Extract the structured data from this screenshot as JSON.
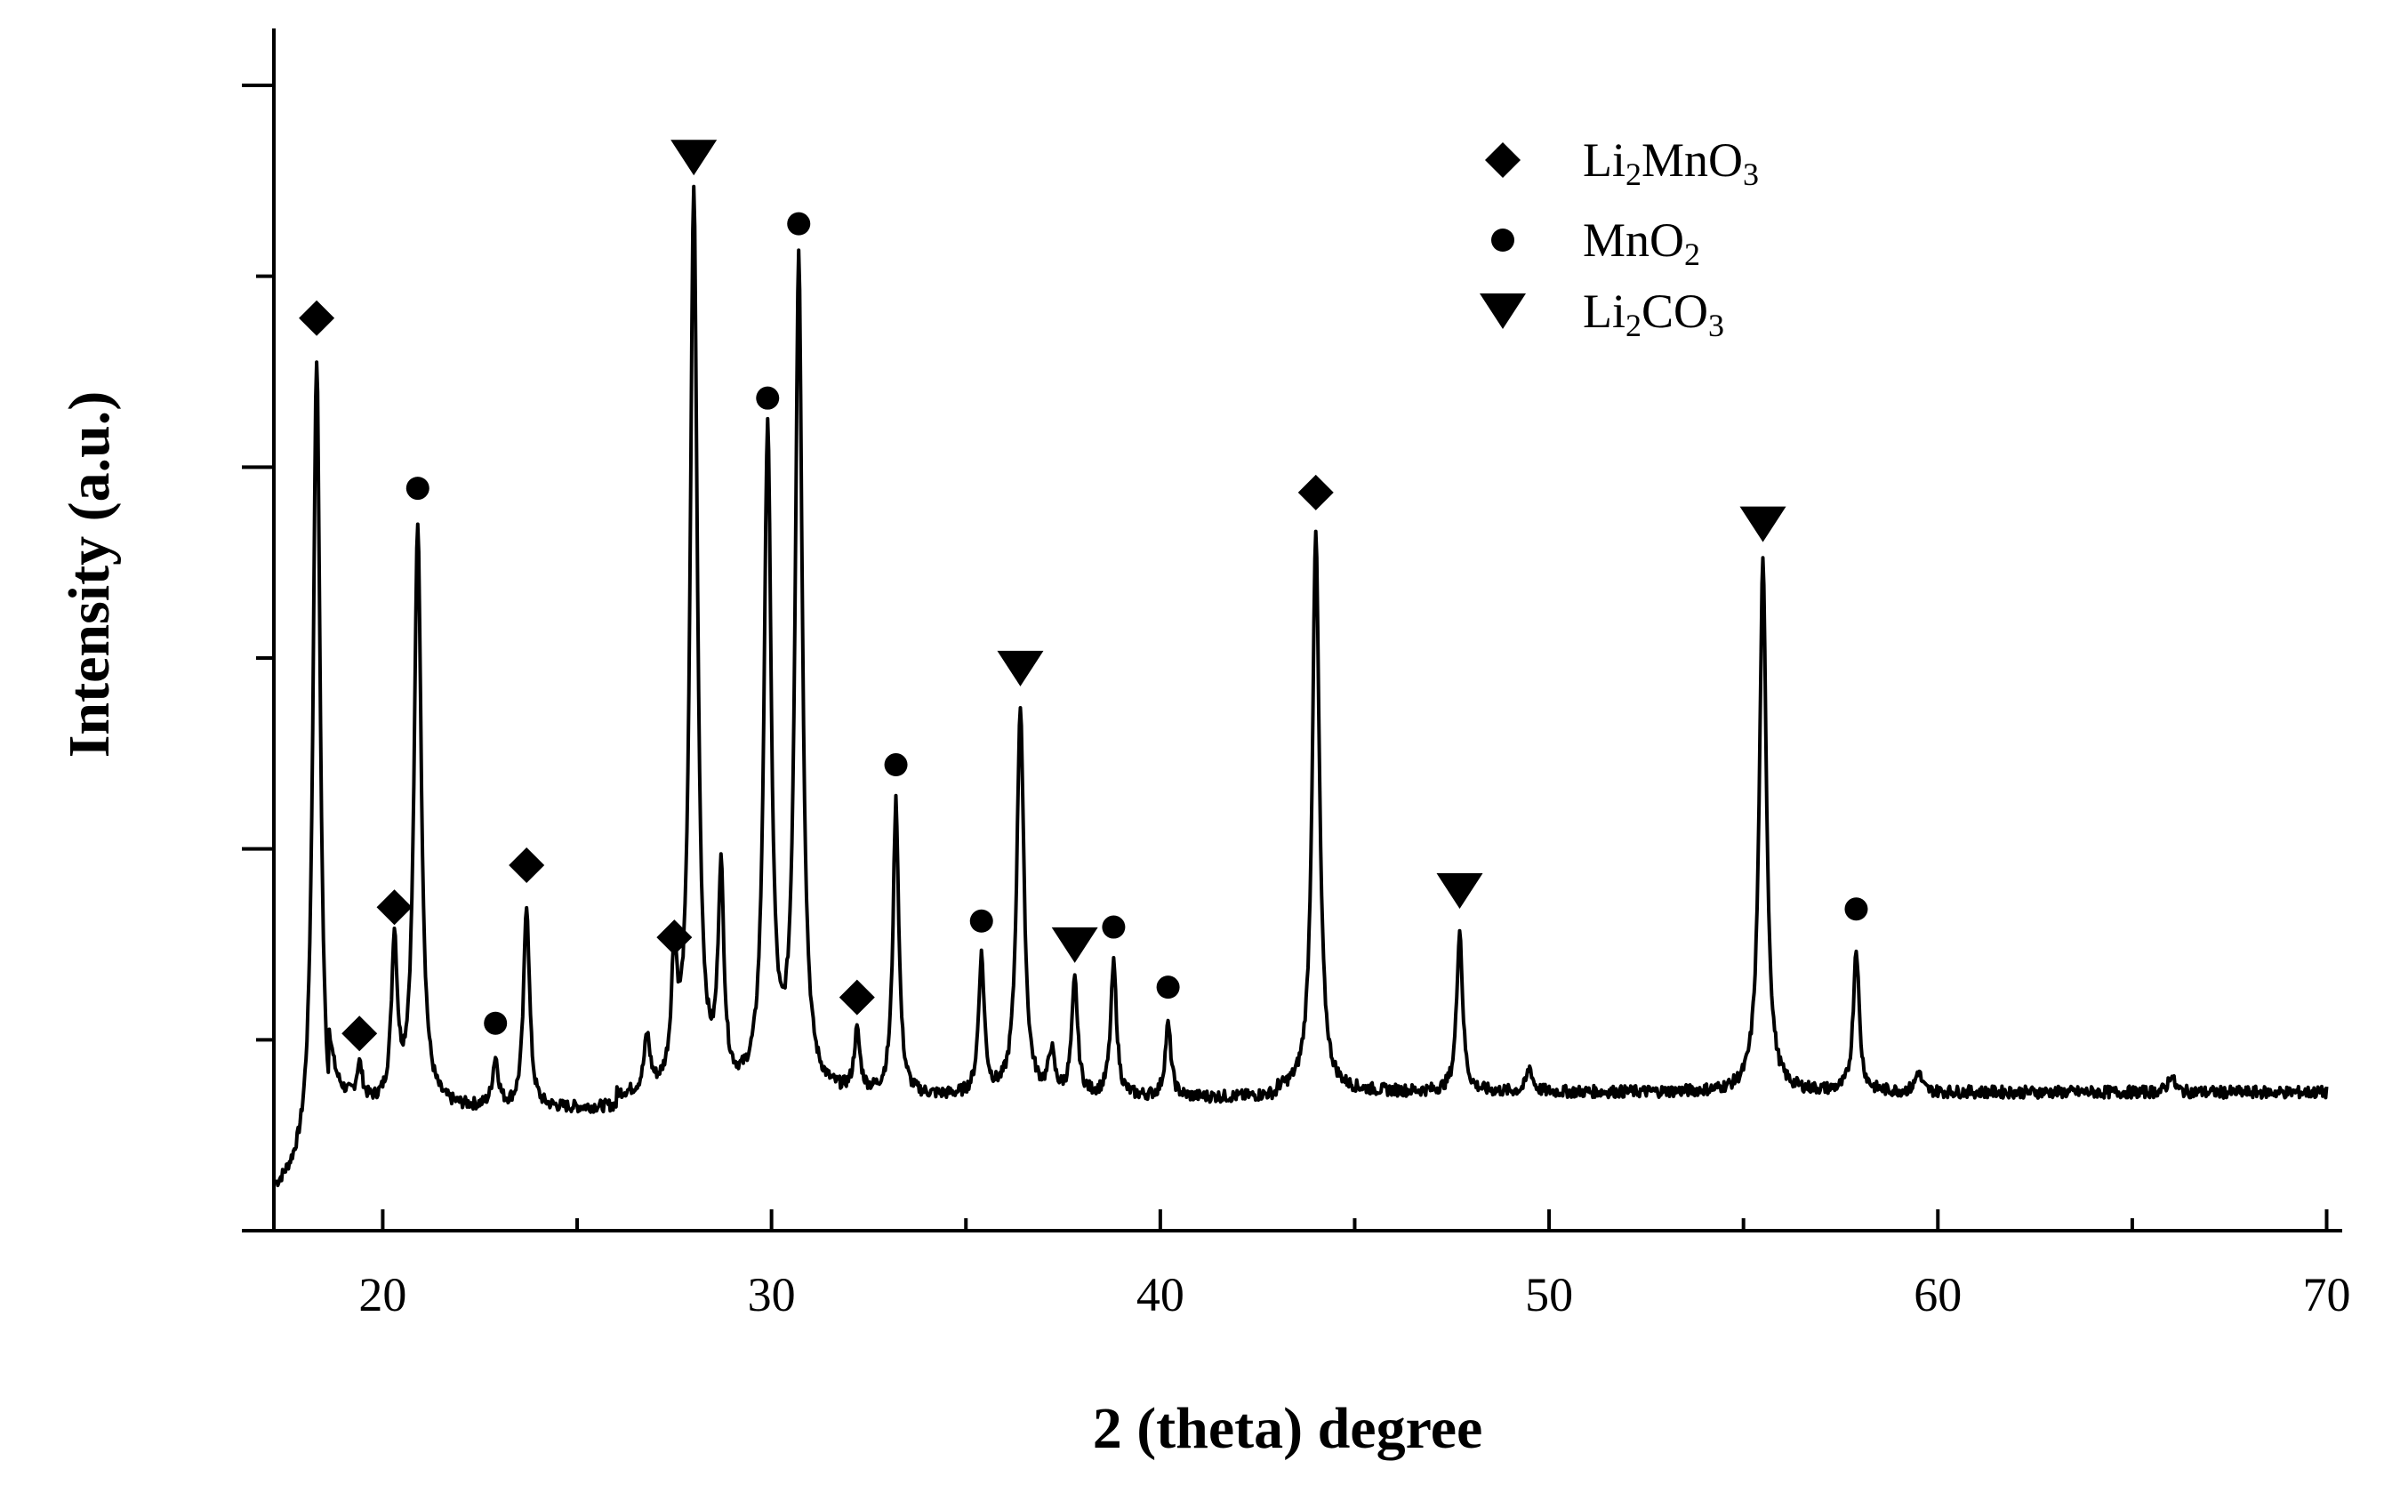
{
  "chart_data": {
    "type": "line",
    "title": "",
    "xlabel": "2 (theta) degree",
    "ylabel": "Intensity (a.u.)",
    "xlim": [
      17.2,
      70.4
    ],
    "ylim": [
      0,
      100
    ],
    "xticks": [
      20,
      30,
      40,
      50,
      60,
      70
    ],
    "x_tick_labels": [
      "20",
      "30",
      "40",
      "50",
      "60",
      "70"
    ],
    "y_tick_labels_shown": false,
    "grid": false,
    "legend_position": "top-right",
    "baseline": {
      "segments": [
        {
          "x_start": 17.2,
          "x_end": 18.0,
          "y": 3
        },
        {
          "x_start": 18.6,
          "x_end": 23.5,
          "y": 10
        },
        {
          "x_start": 24.0,
          "x_end": 26.0,
          "y": 10
        },
        {
          "x_start": 26.0,
          "x_end": 43.0,
          "y": 11
        },
        {
          "x_start": 45.0,
          "x_end": 70.0,
          "y": 11.5
        }
      ]
    },
    "series": [
      {
        "marker": "diamond",
        "legend": {
          "label": "Li",
          "sub1": "2",
          "mid": "MnO",
          "sub2": "3"
        },
        "peaks": [
          {
            "x": 18.3,
            "y": 72.5
          },
          {
            "x": 19.4,
            "y": 13.0
          },
          {
            "x": 20.3,
            "y": 23.5
          },
          {
            "x": 23.7,
            "y": 27.0
          },
          {
            "x": 27.5,
            "y": 21.0
          },
          {
            "x": 32.2,
            "y": 16.0
          },
          {
            "x": 44.0,
            "y": 58.0
          }
        ]
      },
      {
        "marker": "circle",
        "legend": {
          "label": "MnO",
          "sub1": "2",
          "mid": "",
          "sub2": ""
        },
        "peaks": [
          {
            "x": 20.9,
            "y": 58.5
          },
          {
            "x": 22.9,
            "y": 14.0
          },
          {
            "x": 29.9,
            "y": 66.0
          },
          {
            "x": 30.7,
            "y": 80.5
          },
          {
            "x": 33.2,
            "y": 35.5
          },
          {
            "x": 35.4,
            "y": 22.5
          },
          {
            "x": 38.8,
            "y": 22.0
          },
          {
            "x": 40.2,
            "y": 17.0
          },
          {
            "x": 57.9,
            "y": 23.5
          }
        ]
      },
      {
        "marker": "triangle-down",
        "legend": {
          "label": "Li",
          "sub1": "2",
          "mid": "CO",
          "sub2": "3"
        },
        "peaks": [
          {
            "x": 28.0,
            "y": 86.0
          },
          {
            "x": 36.4,
            "y": 43.5
          },
          {
            "x": 37.8,
            "y": 20.5
          },
          {
            "x": 47.7,
            "y": 25.0
          },
          {
            "x": 55.5,
            "y": 55.5
          }
        ]
      }
    ],
    "minor_peaks": [
      {
        "x": 26.8,
        "y": 15.5
      },
      {
        "x": 28.7,
        "y": 28.5
      },
      {
        "x": 37.2,
        "y": 14.5
      },
      {
        "x": 49.5,
        "y": 13.5
      },
      {
        "x": 59.5,
        "y": 13.2
      },
      {
        "x": 66.0,
        "y": 13.0
      }
    ]
  }
}
